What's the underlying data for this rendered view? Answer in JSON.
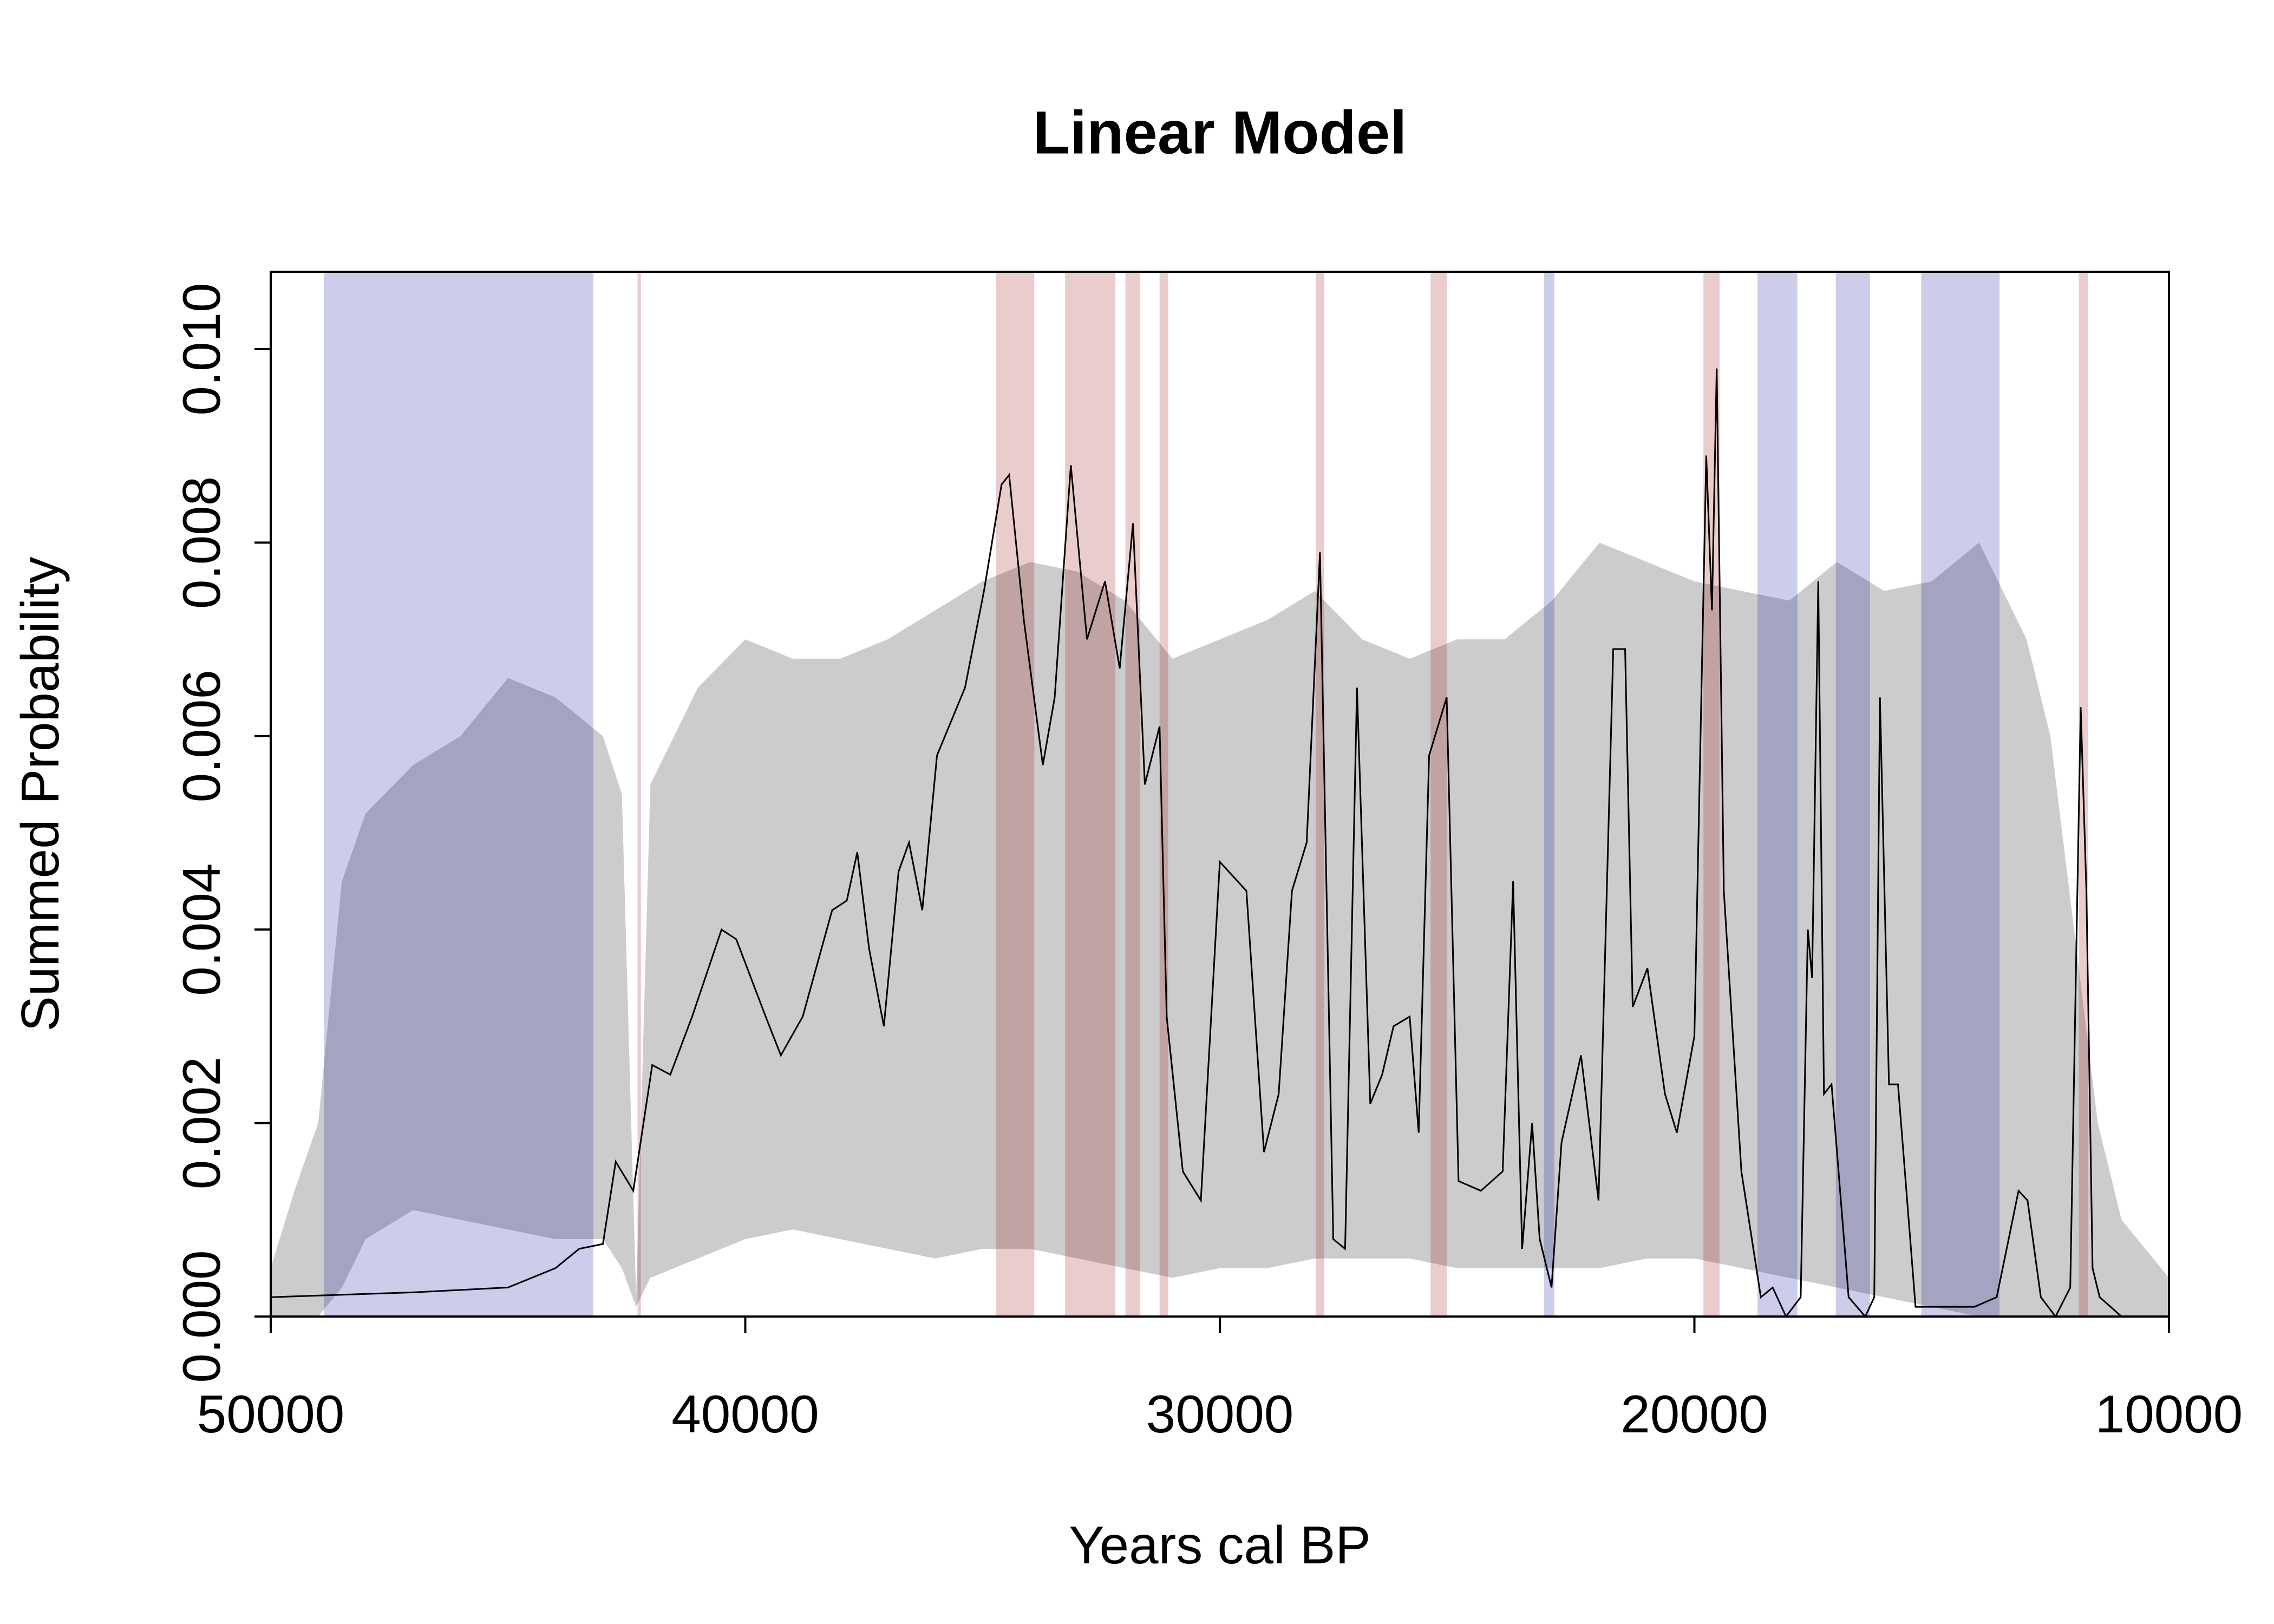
{
  "chart_data": {
    "type": "line",
    "title": "Linear Model",
    "xlabel": "Years cal BP",
    "ylabel": "Summed Probability",
    "xlim": [
      50000,
      10000
    ],
    "xticks": [
      50000,
      40000,
      30000,
      20000,
      10000
    ],
    "ylim": [
      0,
      0.0108
    ],
    "yticks": [
      {
        "value": 0,
        "label": "0.000"
      },
      {
        "value": 0.002,
        "label": "0.002"
      },
      {
        "value": 0.004,
        "label": "0.004"
      },
      {
        "value": 0.006,
        "label": "0.006"
      },
      {
        "value": 0.008,
        "label": "0.008"
      },
      {
        "value": 0.01,
        "label": "0.010"
      }
    ],
    "envelope": {
      "color": "#cccccc",
      "x": [
        50000,
        49500,
        49000,
        48500,
        48000,
        47000,
        46000,
        45000,
        44000,
        43000,
        42600,
        42300,
        42000,
        41000,
        40000,
        39000,
        38000,
        37000,
        36000,
        35000,
        34000,
        33000,
        32000,
        31000,
        30000,
        29000,
        28000,
        27000,
        26000,
        25000,
        24000,
        23000,
        22000,
        21000,
        20000,
        19000,
        18000,
        17000,
        16000,
        15000,
        14000,
        13000,
        12500,
        12000,
        11500,
        11000,
        10000
      ],
      "upper": [
        0.0005,
        0.0013,
        0.002,
        0.0045,
        0.0052,
        0.0057,
        0.006,
        0.0066,
        0.0064,
        0.006,
        0.0054,
        0.0002,
        0.0055,
        0.0065,
        0.007,
        0.0068,
        0.0068,
        0.007,
        0.0073,
        0.0076,
        0.0078,
        0.0077,
        0.0074,
        0.0068,
        0.007,
        0.0072,
        0.0075,
        0.007,
        0.0068,
        0.007,
        0.007,
        0.0074,
        0.008,
        0.0078,
        0.0076,
        0.0075,
        0.0074,
        0.0078,
        0.0075,
        0.0076,
        0.008,
        0.007,
        0.006,
        0.004,
        0.002,
        0.001,
        0.0004
      ],
      "lower": [
        0,
        0,
        0,
        0.0003,
        0.0008,
        0.0011,
        0.001,
        0.0009,
        0.0008,
        0.0008,
        0.0005,
        0.0001,
        0.0004,
        0.0006,
        0.0008,
        0.0009,
        0.0008,
        0.0007,
        0.0006,
        0.0007,
        0.0007,
        0.0006,
        0.0005,
        0.0004,
        0.0005,
        0.0005,
        0.0006,
        0.0006,
        0.0006,
        0.0005,
        0.0005,
        0.0005,
        0.0005,
        0.0006,
        0.0006,
        0.0005,
        0.0004,
        0.0003,
        0.0002,
        0.0001,
        0,
        0,
        0,
        0,
        0,
        0,
        0
      ]
    },
    "intervals": [
      {
        "start": 48880,
        "end": 43200,
        "color": "rgba(0,0,155,0.2)"
      },
      {
        "start": 42270,
        "end": 42200,
        "color": "rgba(155,0,0,0.2)"
      },
      {
        "start": 34720,
        "end": 33910,
        "color": "rgba(155,0,0,0.2)"
      },
      {
        "start": 33260,
        "end": 32200,
        "color": "rgba(155,0,0,0.2)"
      },
      {
        "start": 31990,
        "end": 31680,
        "color": "rgba(155,0,0,0.2)"
      },
      {
        "start": 31270,
        "end": 31090,
        "color": "rgba(155,0,0,0.2)"
      },
      {
        "start": 27980,
        "end": 27800,
        "color": "rgba(155,0,0,0.2)"
      },
      {
        "start": 25560,
        "end": 25220,
        "color": "rgba(155,0,0,0.2)"
      },
      {
        "start": 23170,
        "end": 22950,
        "color": "rgba(0,0,155,0.2)"
      },
      {
        "start": 19810,
        "end": 19470,
        "color": "rgba(155,0,0,0.2)"
      },
      {
        "start": 18670,
        "end": 17830,
        "color": "rgba(0,0,155,0.2)"
      },
      {
        "start": 17020,
        "end": 16300,
        "color": "rgba(0,0,155,0.2)"
      },
      {
        "start": 15220,
        "end": 13570,
        "color": "rgba(0,0,155,0.2)"
      },
      {
        "start": 11900,
        "end": 11710,
        "color": "rgba(155,0,0,0.2)"
      }
    ],
    "line": {
      "color": "#000000",
      "x": [
        50000,
        47000,
        45000,
        44000,
        43500,
        43000,
        42730,
        42360,
        41960,
        41580,
        41120,
        40500,
        40190,
        39570,
        39250,
        38790,
        38170,
        37860,
        37640,
        37390,
        37080,
        36770,
        36550,
        36270,
        35960,
        35370,
        34970,
        34600,
        34440,
        34130,
        33730,
        33480,
        33140,
        32800,
        32420,
        32110,
        31830,
        31580,
        31270,
        31120,
        30780,
        30400,
        30000,
        29440,
        29070,
        28760,
        28480,
        28170,
        27890,
        27610,
        27360,
        27110,
        26830,
        26580,
        26340,
        26000,
        25810,
        25590,
        25220,
        24970,
        24500,
        24040,
        23820,
        23630,
        23420,
        23260,
        23010,
        22800,
        22390,
        22020,
        21710,
        21460,
        21300,
        20990,
        20620,
        20370,
        20000,
        19750,
        19630,
        19530,
        19380,
        19010,
        18600,
        18350,
        18070,
        17760,
        17610,
        17520,
        17390,
        17270,
        17110,
        16750,
        16400,
        16210,
        16090,
        15900,
        15710,
        15340,
        14100,
        13630,
        13420,
        13170,
        12980,
        12700,
        12390,
        12080,
        11860,
        11740,
        11610,
        11460,
        11000,
        10000
      ],
      "values": [
        0.0002,
        0.00025,
        0.0003,
        0.0005,
        0.0007,
        0.00075,
        0.0016,
        0.0013,
        0.0026,
        0.0025,
        0.0031,
        0.004,
        0.0039,
        0.0031,
        0.0027,
        0.0031,
        0.0042,
        0.0043,
        0.0048,
        0.0038,
        0.003,
        0.0046,
        0.0049,
        0.0042,
        0.0058,
        0.0065,
        0.0075,
        0.0086,
        0.0087,
        0.0072,
        0.0057,
        0.0064,
        0.0088,
        0.007,
        0.0076,
        0.0067,
        0.0082,
        0.0055,
        0.0061,
        0.0031,
        0.0015,
        0.0012,
        0.0047,
        0.0044,
        0.0017,
        0.0023,
        0.0044,
        0.0049,
        0.0079,
        0.0008,
        0.0007,
        0.0065,
        0.0022,
        0.0025,
        0.003,
        0.0031,
        0.0019,
        0.0058,
        0.0064,
        0.0014,
        0.0013,
        0.0015,
        0.0045,
        0.0007,
        0.002,
        0.0008,
        0.0003,
        0.0018,
        0.0027,
        0.0012,
        0.0069,
        0.0069,
        0.0032,
        0.0036,
        0.0023,
        0.0019,
        0.0029,
        0.0089,
        0.0073,
        0.0098,
        0.0044,
        0.0015,
        0.0002,
        0.0003,
        0,
        0.0002,
        0.004,
        0.0035,
        0.0076,
        0.0023,
        0.0024,
        0.0002,
        0,
        0.0002,
        0.0064,
        0.0024,
        0.0024,
        0.0001,
        0.0001,
        0.0002,
        0.0007,
        0.0013,
        0.0012,
        0.0002,
        0,
        0.0003,
        0.0063,
        0.0044,
        0.0005,
        0.0002,
        0,
        0
      ]
    }
  }
}
